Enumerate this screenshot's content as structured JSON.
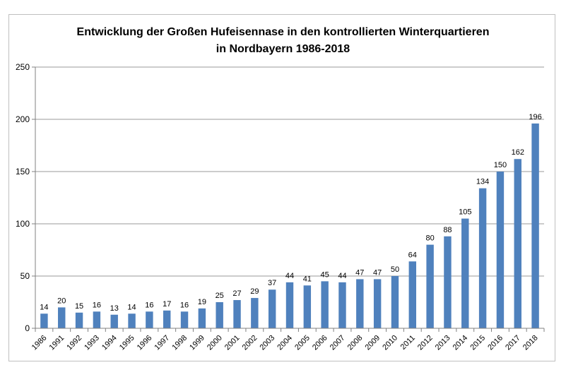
{
  "chart_data": {
    "type": "bar",
    "title_line1": "Entwicklung der Großen Hufeisennase in den kontrollierten Winterquartieren",
    "title_line2": "in Nordbayern 1986-2018",
    "xlabel": "",
    "ylabel": "",
    "ylim": [
      0,
      250
    ],
    "yticks": [
      0,
      50,
      100,
      150,
      200,
      250
    ],
    "grid": true,
    "legend": "none",
    "bar_color": "#4f81bd",
    "categories": [
      "1986",
      "1991",
      "1992",
      "1993",
      "1994",
      "1995",
      "1996",
      "1997",
      "1998",
      "1999",
      "2000",
      "2001",
      "2002",
      "2003",
      "2004",
      "2005",
      "2006",
      "2007",
      "2008",
      "2009",
      "2010",
      "2011",
      "2012",
      "2013",
      "2014",
      "2015",
      "2016",
      "2017",
      "2018"
    ],
    "values": [
      14,
      20,
      15,
      16,
      13,
      14,
      16,
      17,
      16,
      19,
      25,
      27,
      29,
      37,
      44,
      41,
      45,
      44,
      47,
      47,
      50,
      64,
      80,
      88,
      105,
      134,
      150,
      162,
      196
    ]
  }
}
